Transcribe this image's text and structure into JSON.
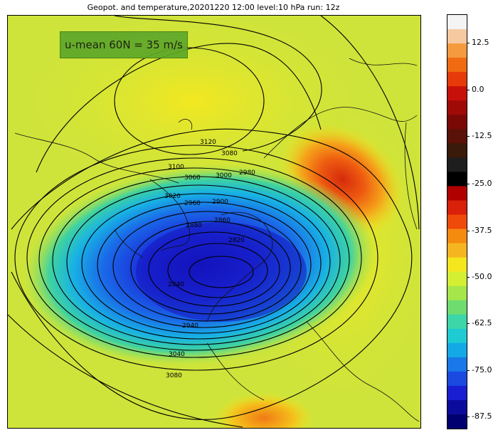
{
  "title": "Geopot. and temperature,20201220 12:00 level:10 hPa run: 12z",
  "annotation": "u-mean 60N = 35 m/s",
  "colorbar": {
    "ticks": [
      "12.5",
      "0.0",
      "-12.5",
      "-25.0",
      "-37.5",
      "-50.0",
      "-62.5",
      "-75.0",
      "-87.5"
    ],
    "stops": [
      "#f4f4f4",
      "#f7c9a0",
      "#f59a3e",
      "#f06a12",
      "#e63a0a",
      "#c8100a",
      "#a00a06",
      "#7a0906",
      "#5a1208",
      "#3a1a0a",
      "#1e1e1e",
      "#000000",
      "#b00000",
      "#d8200a",
      "#f04a0a",
      "#f58a10",
      "#f5b520",
      "#f5e61e",
      "#d4ef32",
      "#a6e64a",
      "#6fdc70",
      "#3cd6a8",
      "#1ecbd2",
      "#14a8e6",
      "#1a78e8",
      "#1a4ae0",
      "#1a1ed2",
      "#0c0c9c",
      "#000070"
    ]
  },
  "contour_labels": [
    "3120",
    "3100",
    "3080",
    "3060",
    "3000",
    "2980",
    "3020",
    "2960",
    "2900",
    "2880",
    "2860",
    "2820",
    "2840",
    "2940",
    "3040",
    "3080"
  ],
  "colors": {
    "background_field": "#d7e632",
    "deep_vortex": "#1b1ed0",
    "warm_anomaly": "#e2450f"
  }
}
